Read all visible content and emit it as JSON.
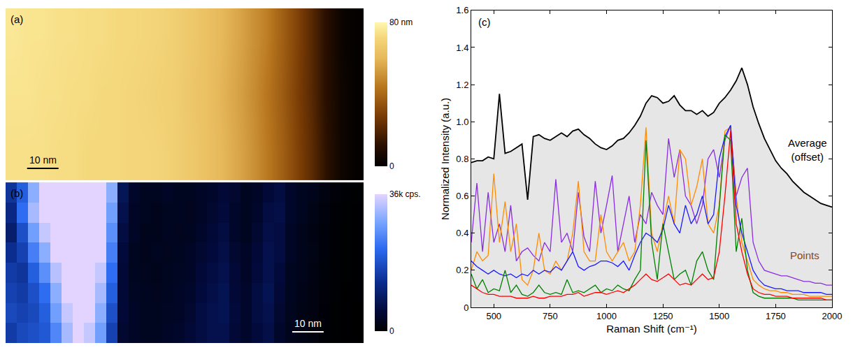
{
  "chart_data": [
    {
      "panel": "(a)",
      "type": "heatmap",
      "tick_labels": false,
      "xlim": [
        0,
        114
      ],
      "ylim": [
        0,
        55
      ],
      "z": [
        [
          74,
          74,
          74,
          73,
          73,
          72,
          72,
          72,
          71,
          71,
          70,
          68,
          66,
          63,
          60,
          56,
          51,
          45,
          38,
          30,
          22,
          12,
          4,
          1
        ],
        [
          75,
          75,
          74,
          74,
          73,
          73,
          72,
          72,
          71,
          70,
          69,
          68,
          65,
          63,
          59,
          55,
          50,
          44,
          37,
          29,
          21,
          11,
          4,
          1
        ],
        [
          76,
          75,
          75,
          74,
          74,
          73,
          73,
          72,
          72,
          71,
          70,
          68,
          66,
          63,
          60,
          56,
          51,
          46,
          38,
          30,
          21,
          11,
          3,
          1
        ]
      ],
      "zlim": [
        0,
        80
      ],
      "zticks": [
        0,
        {
          "value": 80,
          "label": "80 nm"
        }
      ],
      "scale_bar": {
        "length": 10,
        "label": "10 nm"
      }
    },
    {
      "panel": "(b)",
      "type": "heatmap",
      "tick_labels": false,
      "xlim": [
        0,
        114
      ],
      "ylim": [
        0,
        55
      ],
      "z": [
        [
          15000,
          17000,
          18000,
          19000,
          25000,
          32000,
          36000,
          34000,
          28000,
          16000,
          4500,
          3500,
          3000,
          3000,
          3500,
          4000,
          5000,
          6000,
          7000,
          7000,
          5000,
          4000,
          5500,
          6500,
          4000,
          2500,
          2000,
          1400,
          600,
          300,
          200,
          100
        ],
        [
          17000,
          16000,
          17000,
          20000,
          28000,
          34000,
          36000,
          36000,
          30000,
          18000,
          5000,
          3500,
          3000,
          3000,
          3200,
          3500,
          4500,
          6000,
          7000,
          7500,
          5500,
          4000,
          6000,
          7000,
          4500,
          2800,
          2000,
          1500,
          700,
          300,
          200,
          100
        ],
        [
          16000,
          15000,
          18000,
          22000,
          30000,
          36000,
          36000,
          36000,
          32000,
          20000,
          5000,
          3200,
          3000,
          2800,
          3000,
          3500,
          4000,
          5500,
          6500,
          7500,
          5000,
          4000,
          6000,
          7500,
          5000,
          3000,
          2200,
          1600,
          800,
          400,
          200,
          200
        ],
        [
          15000,
          14000,
          20000,
          26000,
          33000,
          36000,
          36000,
          36000,
          34000,
          22000,
          5000,
          3000,
          2800,
          2500,
          3000,
          3200,
          3500,
          5000,
          6000,
          7000,
          5000,
          3500,
          5500,
          7000,
          5500,
          3000,
          2500,
          1800,
          900,
          400,
          300,
          200
        ],
        [
          13000,
          16000,
          24000,
          30000,
          36000,
          36000,
          36000,
          36000,
          36000,
          24000,
          5500,
          3000,
          2500,
          3000,
          2800,
          3000,
          3500,
          4500,
          5500,
          6500,
          4500,
          3500,
          5000,
          7000,
          6000,
          3500,
          2500,
          2000,
          1000,
          500,
          300,
          200
        ],
        [
          10000,
          18000,
          28000,
          34000,
          36000,
          36000,
          36000,
          36000,
          36000,
          26000,
          6000,
          3500,
          2500,
          2500,
          3000,
          2800,
          3000,
          4000,
          5000,
          6000,
          4000,
          3000,
          4500,
          6500,
          6000,
          3500,
          2500,
          1800,
          1000,
          500,
          300,
          200
        ],
        [
          12000,
          22000,
          32000,
          36000,
          36000,
          36000,
          36000,
          36000,
          36000,
          28000,
          7000,
          3500,
          3000,
          2500,
          3000,
          3000,
          2800,
          3500,
          4500,
          5500,
          4000,
          3000,
          4000,
          6000,
          6500,
          4000,
          3000,
          2000,
          1200,
          600,
          300,
          200
        ],
        [
          14000,
          20000,
          30000,
          36000,
          36000,
          36000,
          36000,
          36000,
          36000,
          30000,
          8000,
          4000,
          3000,
          3000,
          3500,
          3000,
          3000,
          3500,
          4000,
          5000,
          4500,
          3000,
          3500,
          5000,
          6000,
          4000,
          3000,
          2500,
          1500,
          800,
          400,
          300
        ]
      ],
      "zlim": [
        0,
        36000
      ],
      "zticks": [
        0,
        {
          "value": 36000,
          "label": "36k cps."
        }
      ],
      "scale_bar": {
        "length": 10,
        "label": "10 nm"
      }
    },
    {
      "panel": "(c)",
      "type": "line",
      "x_label": "Raman Shift (cm⁻¹)",
      "y_label": "Normalized Intensity (a.u.)",
      "xlim": [
        400,
        2000
      ],
      "xticks": [
        500,
        750,
        1000,
        1250,
        1500,
        1750,
        2000
      ],
      "ylim": [
        0,
        1.6
      ],
      "yticks": [
        0,
        0.2,
        0.4,
        0.6,
        0.8,
        {
          "value": 1,
          "label": "1.0"
        },
        1.2,
        1.4,
        1.6
      ],
      "grid": false,
      "x": [
        400,
        425,
        450,
        475,
        500,
        525,
        550,
        575,
        600,
        625,
        650,
        675,
        700,
        725,
        750,
        775,
        800,
        825,
        850,
        875,
        900,
        925,
        950,
        975,
        1000,
        1025,
        1050,
        1075,
        1100,
        1125,
        1150,
        1175,
        1200,
        1225,
        1250,
        1275,
        1300,
        1325,
        1350,
        1375,
        1400,
        1425,
        1450,
        1475,
        1500,
        1525,
        1550,
        1575,
        1600,
        1625,
        1650,
        1675,
        1700,
        1725,
        1750,
        1775,
        1800,
        1825,
        1850,
        1875,
        1900,
        1925,
        1950,
        1975,
        2000
      ],
      "series": [
        {
          "type": "area",
          "color": "#000000",
          "values": [
            0.78,
            0.79,
            0.79,
            0.81,
            0.8,
            1.15,
            0.83,
            0.84,
            0.86,
            0.88,
            0.58,
            0.92,
            0.93,
            0.91,
            0.9,
            0.92,
            0.94,
            0.92,
            0.95,
            0.96,
            0.93,
            0.91,
            0.88,
            0.86,
            0.85,
            0.87,
            0.9,
            0.91,
            0.94,
            0.98,
            1.03,
            1.1,
            1.14,
            1.13,
            1.1,
            1.11,
            1.14,
            1.09,
            1.06,
            1.06,
            1.04,
            1.06,
            1.03,
            1.05,
            1.1,
            1.13,
            1.17,
            1.22,
            1.29,
            1.2,
            1.08,
            0.99,
            0.91,
            0.85,
            0.79,
            0.75,
            0.72,
            0.68,
            0.65,
            0.62,
            0.6,
            0.58,
            0.56,
            0.55,
            0.54
          ]
        },
        {
          "type": "line",
          "color": "#8a2be2",
          "values": [
            0.35,
            0.67,
            0.3,
            0.62,
            0.35,
            0.45,
            0.3,
            0.55,
            0.25,
            0.3,
            0.32,
            0.28,
            0.25,
            0.35,
            0.3,
            0.69,
            0.35,
            0.4,
            0.3,
            0.62,
            0.38,
            0.3,
            0.68,
            0.4,
            0.55,
            0.71,
            0.3,
            0.45,
            0.6,
            0.35,
            0.5,
            0.45,
            0.62,
            0.55,
            0.5,
            0.91,
            0.7,
            0.85,
            0.6,
            0.55,
            0.45,
            0.55,
            0.8,
            0.85,
            0.7,
            0.9,
            0.98,
            0.6,
            0.7,
            0.75,
            0.35,
            0.25,
            0.2,
            0.19,
            0.18,
            0.17,
            0.17,
            0.16,
            0.15,
            0.14,
            0.14,
            0.13,
            0.13,
            0.12,
            0.12
          ]
        },
        {
          "type": "line",
          "color": "#ff8c00",
          "values": [
            0.2,
            0.3,
            0.25,
            0.28,
            0.72,
            0.35,
            0.57,
            0.3,
            0.45,
            0.15,
            0.12,
            0.2,
            0.4,
            0.2,
            0.18,
            0.25,
            0.2,
            0.25,
            0.4,
            0.68,
            0.3,
            0.25,
            0.25,
            0.5,
            0.3,
            0.25,
            0.3,
            0.35,
            0.25,
            0.3,
            0.55,
            0.97,
            0.4,
            0.3,
            0.45,
            0.6,
            0.45,
            0.85,
            0.8,
            0.55,
            0.65,
            0.8,
            0.45,
            0.4,
            0.55,
            0.95,
            0.97,
            0.6,
            0.35,
            0.25,
            0.15,
            0.12,
            0.1,
            0.09,
            0.09,
            0.08,
            0.08,
            0.07,
            0.07,
            0.07,
            0.06,
            0.06,
            0.06,
            0.06,
            0.06
          ]
        },
        {
          "type": "line",
          "color": "#1a1aff",
          "values": [
            0.25,
            0.22,
            0.2,
            0.18,
            0.2,
            0.18,
            0.17,
            0.18,
            0.16,
            0.18,
            0.17,
            0.2,
            0.18,
            0.2,
            0.19,
            0.22,
            0.2,
            0.25,
            0.3,
            0.22,
            0.2,
            0.22,
            0.23,
            0.25,
            0.25,
            0.24,
            0.22,
            0.25,
            0.2,
            0.28,
            0.35,
            0.4,
            0.38,
            0.35,
            0.42,
            0.55,
            0.45,
            0.4,
            0.55,
            0.45,
            0.5,
            0.6,
            0.45,
            0.5,
            0.8,
            0.92,
            0.98,
            0.55,
            0.4,
            0.3,
            0.2,
            0.15,
            0.12,
            0.11,
            0.1,
            0.1,
            0.09,
            0.09,
            0.09,
            0.08,
            0.08,
            0.08,
            0.08,
            0.07,
            0.07
          ]
        },
        {
          "type": "line",
          "color": "#008000",
          "values": [
            0.18,
            0.1,
            0.15,
            0.08,
            0.1,
            0.09,
            0.2,
            0.08,
            0.12,
            0.07,
            0.06,
            0.08,
            0.12,
            0.08,
            0.07,
            0.08,
            0.07,
            0.15,
            0.08,
            0.09,
            0.08,
            0.1,
            0.12,
            0.08,
            0.1,
            0.09,
            0.12,
            0.1,
            0.09,
            0.15,
            0.2,
            0.9,
            0.35,
            0.15,
            0.45,
            0.3,
            0.15,
            0.18,
            0.2,
            0.12,
            0.25,
            0.3,
            0.2,
            0.15,
            0.55,
            0.93,
            0.9,
            0.3,
            0.48,
            0.2,
            0.08,
            0.06,
            0.05,
            0.05,
            0.05,
            0.05,
            0.05,
            0.05,
            0.04,
            0.04,
            0.04,
            0.04,
            0.04,
            0.04,
            0.04
          ]
        },
        {
          "type": "line",
          "color": "#ff0000",
          "values": [
            0.12,
            0.1,
            0.08,
            0.07,
            0.07,
            0.06,
            0.06,
            0.06,
            0.05,
            0.05,
            0.05,
            0.06,
            0.05,
            0.05,
            0.06,
            0.06,
            0.06,
            0.07,
            0.07,
            0.08,
            0.06,
            0.07,
            0.08,
            0.08,
            0.07,
            0.08,
            0.09,
            0.08,
            0.1,
            0.12,
            0.15,
            0.18,
            0.15,
            0.14,
            0.16,
            0.18,
            0.15,
            0.12,
            0.13,
            0.12,
            0.15,
            0.18,
            0.15,
            0.16,
            0.3,
            0.6,
            0.95,
            0.45,
            0.3,
            0.18,
            0.1,
            0.08,
            0.07,
            0.07,
            0.06,
            0.06,
            0.06,
            0.05,
            0.05,
            0.05,
            0.05,
            0.05,
            0.05,
            0.04,
            0.04
          ]
        }
      ],
      "annotations": [
        {
          "text": "Average (offset)",
          "x": 1890,
          "y": 0.85
        },
        {
          "text": "Points",
          "x": 1880,
          "y": 0.28,
          "color": "#8b4513"
        }
      ]
    }
  ]
}
